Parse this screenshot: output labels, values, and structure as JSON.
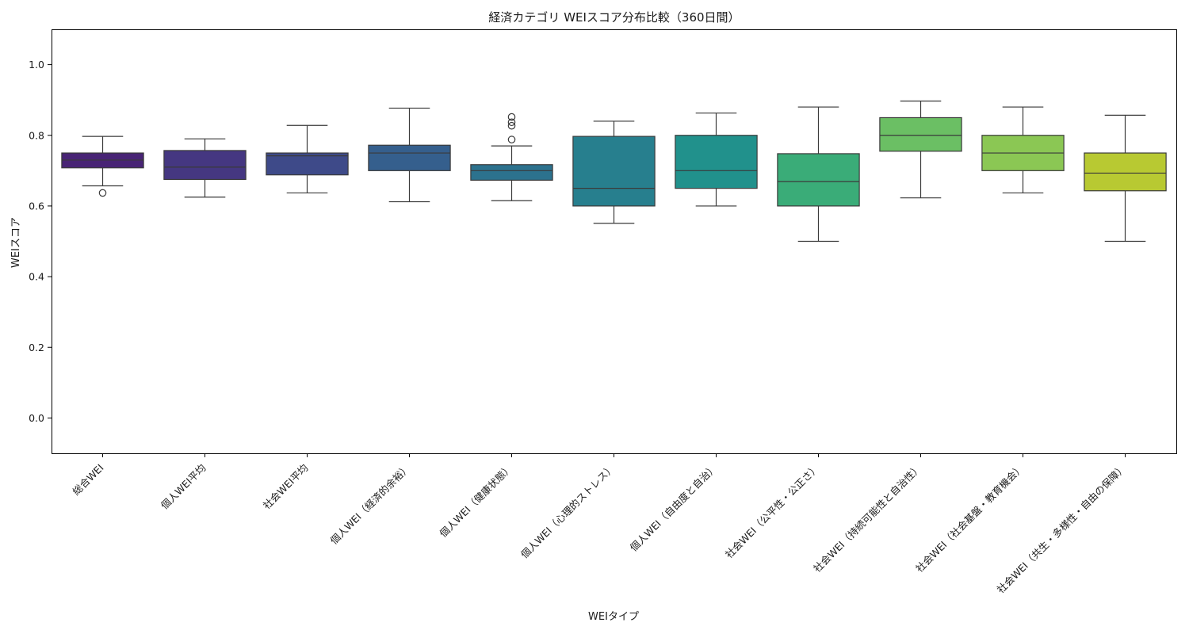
{
  "chart_data": {
    "type": "box",
    "title": "経済カテゴリ WEIスコア分布比較（360日間）",
    "xlabel": "WEIタイプ",
    "ylabel": "WEIスコア",
    "ylim": [
      -0.1,
      1.1
    ],
    "yticks": [
      "0.0",
      "0.2",
      "0.4",
      "0.6",
      "0.8",
      "1.0"
    ],
    "ytick_values": [
      0.0,
      0.2,
      0.4,
      0.6,
      0.8,
      1.0
    ],
    "grid": false,
    "legend": "none",
    "categories": [
      "総合WEI",
      "個人WEI平均",
      "社会WEI平均",
      "個人WEI（経済的余裕）",
      "個人WEI（健康状態）",
      "個人WEI（心理的ストレス）",
      "個人WEI（自由度と自治）",
      "社会WEI（公平性・公正さ）",
      "社会WEI（持続可能性と自治性）",
      "社会WEI（社会基盤・教育機会）",
      "社会WEI（共生・多様性・自由の保障）"
    ],
    "boxes": [
      {
        "whisker_low": 0.657,
        "q1": 0.708,
        "median": 0.73,
        "q3": 0.75,
        "whisker_high": 0.797,
        "outliers": [
          0.637
        ],
        "color": "#482475"
      },
      {
        "whisker_low": 0.625,
        "q1": 0.675,
        "median": 0.71,
        "q3": 0.757,
        "whisker_high": 0.79,
        "outliers": [],
        "color": "#453781"
      },
      {
        "whisker_low": 0.637,
        "q1": 0.688,
        "median": 0.742,
        "q3": 0.75,
        "whisker_high": 0.828,
        "outliers": [],
        "color": "#3e4a89"
      },
      {
        "whisker_low": 0.612,
        "q1": 0.7,
        "median": 0.75,
        "q3": 0.772,
        "whisker_high": 0.877,
        "outliers": [],
        "color": "#355f8d"
      },
      {
        "whisker_low": 0.615,
        "q1": 0.673,
        "median": 0.7,
        "q3": 0.717,
        "whisker_high": 0.77,
        "outliers": [
          0.788,
          0.827,
          0.837,
          0.852
        ],
        "color": "#2c728e"
      },
      {
        "whisker_low": 0.551,
        "q1": 0.6,
        "median": 0.65,
        "q3": 0.797,
        "whisker_high": 0.84,
        "outliers": [],
        "color": "#277f8e"
      },
      {
        "whisker_low": 0.6,
        "q1": 0.65,
        "median": 0.7,
        "q3": 0.8,
        "whisker_high": 0.863,
        "outliers": [],
        "color": "#21918c"
      },
      {
        "whisker_low": 0.5,
        "q1": 0.6,
        "median": 0.669,
        "q3": 0.748,
        "whisker_high": 0.88,
        "outliers": [],
        "color": "#3aac78"
      },
      {
        "whisker_low": 0.623,
        "q1": 0.755,
        "median": 0.8,
        "q3": 0.85,
        "whisker_high": 0.897,
        "outliers": [],
        "color": "#6bbf64"
      },
      {
        "whisker_low": 0.637,
        "q1": 0.7,
        "median": 0.75,
        "q3": 0.8,
        "whisker_high": 0.88,
        "outliers": [],
        "color": "#8bc754"
      },
      {
        "whisker_low": 0.5,
        "q1": 0.643,
        "median": 0.693,
        "q3": 0.75,
        "whisker_high": 0.857,
        "outliers": [],
        "color": "#b8c932"
      }
    ]
  }
}
